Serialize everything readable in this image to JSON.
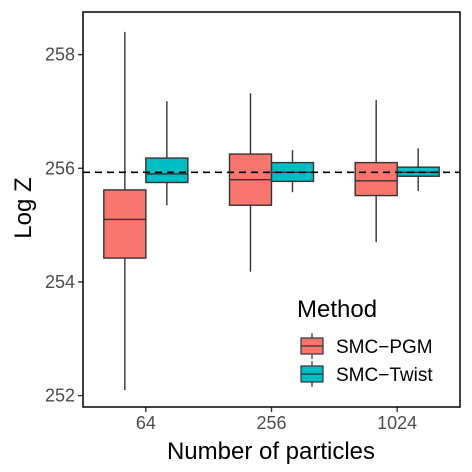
{
  "chart_data": {
    "type": "boxplot",
    "xlabel": "Number of particles",
    "ylabel": "Log Z",
    "categories": [
      "64",
      "256",
      "1024"
    ],
    "ylim": [
      251.8,
      258.75
    ],
    "yticks": [
      252,
      254,
      256,
      258
    ],
    "reference_line": {
      "y": 255.93,
      "style": "dashed"
    },
    "grid": false,
    "legend": {
      "title": "Method",
      "position": "bottom-right-inside",
      "entries": [
        "SMC−PGM",
        "SMC−Twist"
      ]
    },
    "series": [
      {
        "name": "SMC−PGM",
        "color": "#F8766D",
        "boxes": [
          {
            "whisker_low": 252.1,
            "q1": 254.42,
            "median": 255.1,
            "q3": 255.62,
            "whisker_high": 258.4
          },
          {
            "whisker_low": 254.18,
            "q1": 255.35,
            "median": 255.8,
            "q3": 256.25,
            "whisker_high": 257.32
          },
          {
            "whisker_low": 254.7,
            "q1": 255.52,
            "median": 255.78,
            "q3": 256.1,
            "whisker_high": 257.2
          }
        ]
      },
      {
        "name": "SMC−Twist",
        "color": "#00BFC4",
        "boxes": [
          {
            "whisker_low": 255.35,
            "q1": 255.75,
            "median": 255.9,
            "q3": 256.18,
            "whisker_high": 257.18
          },
          {
            "whisker_low": 255.58,
            "q1": 255.77,
            "median": 255.93,
            "q3": 256.1,
            "whisker_high": 256.32
          },
          {
            "whisker_low": 255.6,
            "q1": 255.86,
            "median": 255.93,
            "q3": 256.02,
            "whisker_high": 256.35
          }
        ]
      }
    ]
  }
}
